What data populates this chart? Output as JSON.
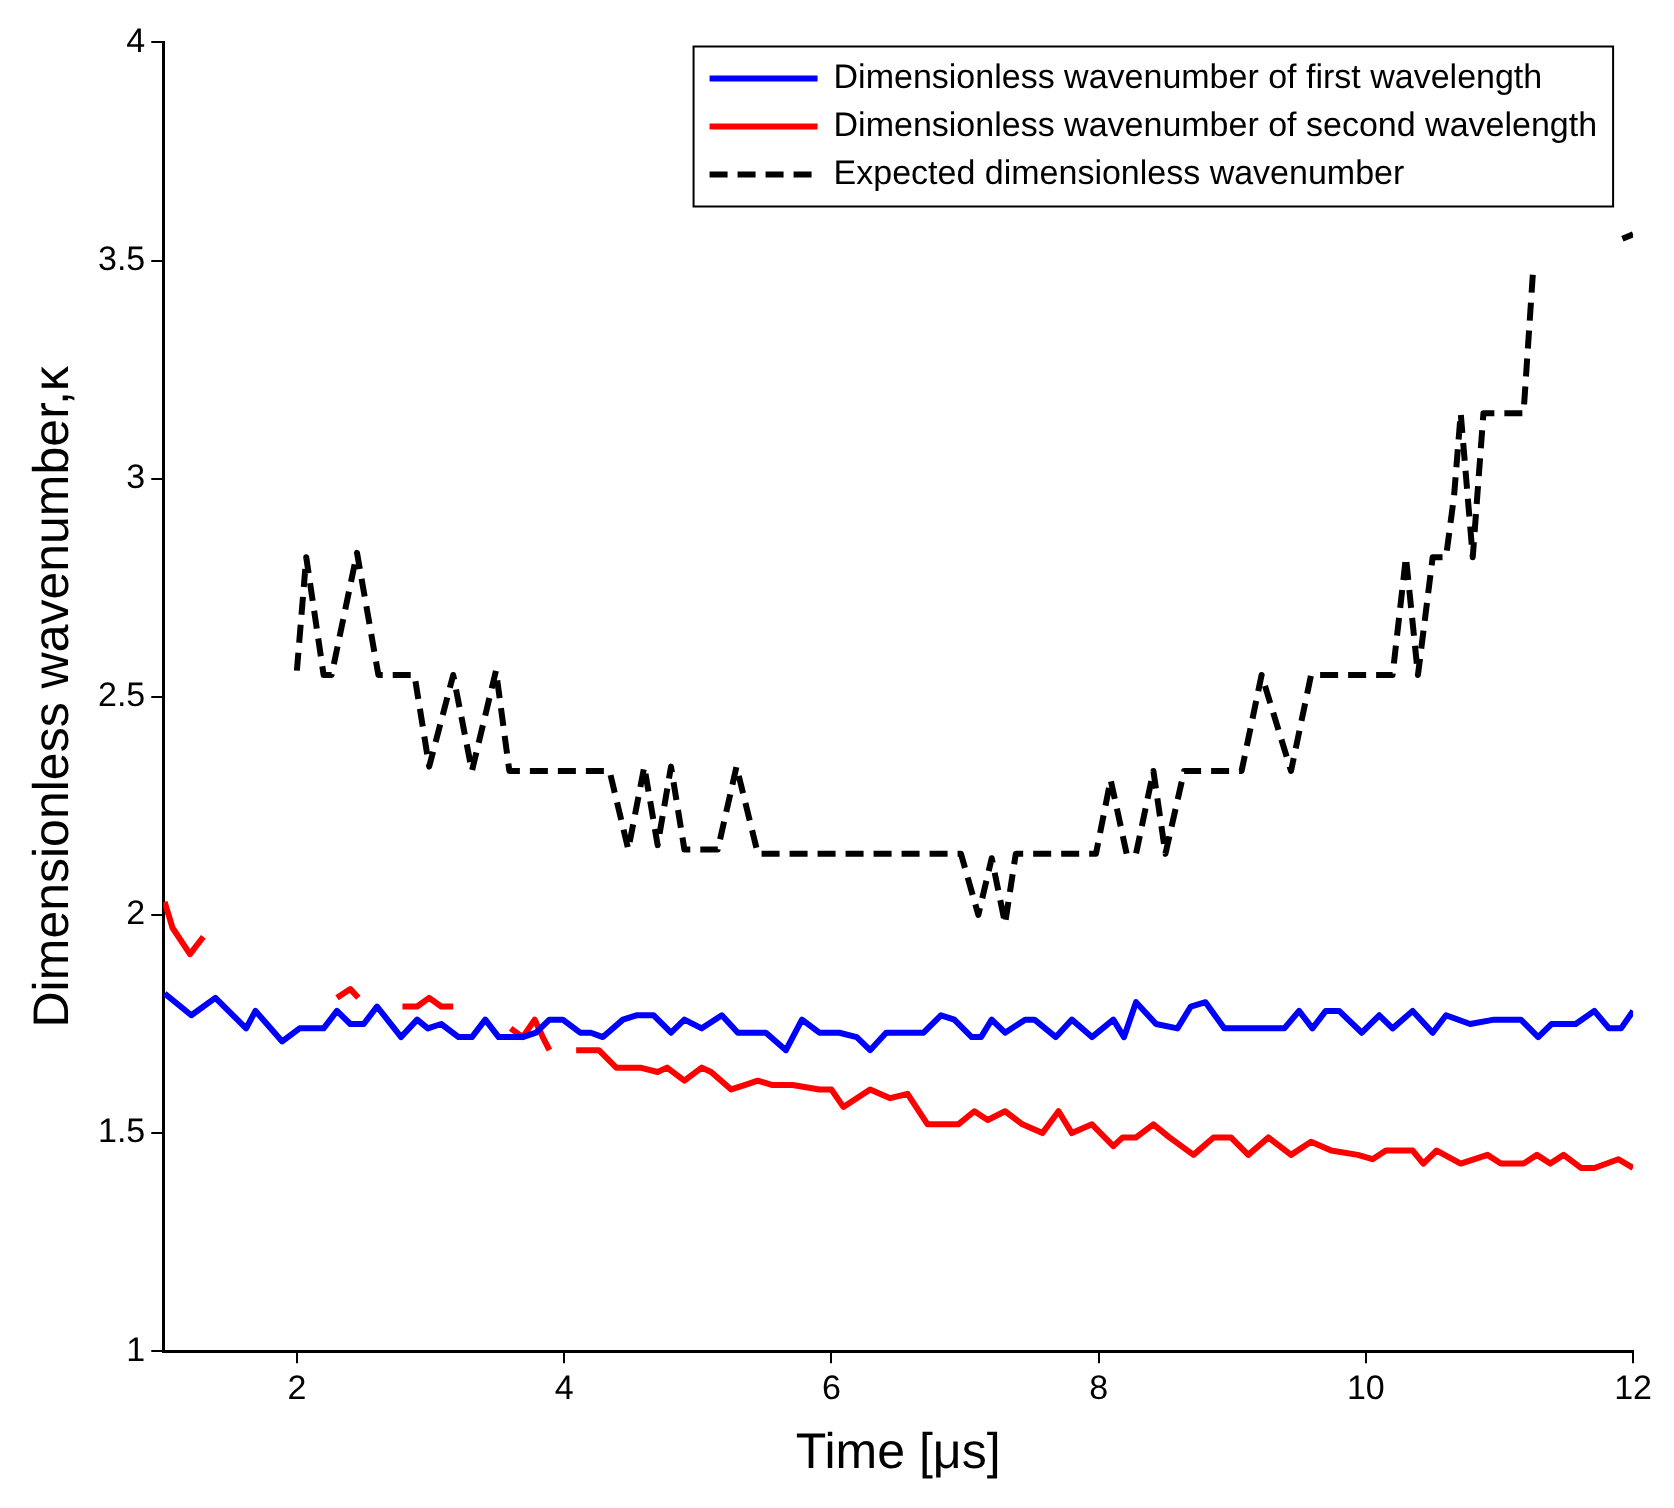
{
  "chart_data": {
    "type": "line",
    "xlabel": "Time [μs]",
    "ylabel": "Dimensionless wavenumber,κ",
    "xlim": [
      1,
      12
    ],
    "xticks": [
      2,
      4,
      6,
      8,
      10,
      12
    ],
    "ylim": [
      1,
      4
    ],
    "yticks": [
      1,
      1.5,
      2,
      2.5,
      3,
      3.5,
      4
    ],
    "grid": false,
    "legend": "top right",
    "marker": "none",
    "series": [
      {
        "name": "Dimensionless wavenumber of first wavelength",
        "color": "#0000ff",
        "line_style": "solid",
        "x": [
          1.01,
          1.21,
          1.39,
          1.62,
          1.69,
          1.89,
          2.02,
          2.2,
          2.3,
          2.4,
          2.5,
          2.6,
          2.78,
          2.9,
          2.98,
          3.08,
          3.21,
          3.31,
          3.41,
          3.51,
          3.69,
          3.79,
          3.89,
          3.99,
          4.12,
          4.2,
          4.29,
          4.44,
          4.54,
          4.67,
          4.8,
          4.9,
          5.03,
          5.18,
          5.3,
          5.51,
          5.66,
          5.78,
          5.91,
          6.06,
          6.19,
          6.29,
          6.41,
          6.69,
          6.82,
          6.92,
          7.05,
          7.12,
          7.2,
          7.3,
          7.45,
          7.52,
          7.68,
          7.8,
          7.95,
          8.11,
          8.19,
          8.28,
          8.43,
          8.59,
          8.69,
          8.8,
          8.94,
          9.09,
          9.19,
          9.39,
          9.5,
          9.6,
          9.7,
          9.8,
          9.97,
          10.1,
          10.2,
          10.35,
          10.5,
          10.6,
          10.78,
          10.96,
          11.16,
          11.29,
          11.39,
          11.57,
          11.71,
          11.82,
          11.91,
          12
        ],
        "values": [
          1.82,
          1.77,
          1.81,
          1.74,
          1.78,
          1.71,
          1.74,
          1.74,
          1.78,
          1.75,
          1.75,
          1.79,
          1.72,
          1.76,
          1.74,
          1.75,
          1.72,
          1.72,
          1.76,
          1.72,
          1.72,
          1.73,
          1.76,
          1.76,
          1.73,
          1.73,
          1.72,
          1.76,
          1.77,
          1.77,
          1.73,
          1.76,
          1.74,
          1.77,
          1.73,
          1.73,
          1.69,
          1.76,
          1.73,
          1.73,
          1.72,
          1.69,
          1.73,
          1.73,
          1.77,
          1.76,
          1.72,
          1.72,
          1.76,
          1.73,
          1.76,
          1.76,
          1.72,
          1.76,
          1.72,
          1.76,
          1.72,
          1.8,
          1.75,
          1.74,
          1.79,
          1.8,
          1.74,
          1.74,
          1.74,
          1.74,
          1.78,
          1.74,
          1.78,
          1.78,
          1.73,
          1.77,
          1.74,
          1.78,
          1.73,
          1.77,
          1.75,
          1.76,
          1.76,
          1.72,
          1.75,
          1.75,
          1.78,
          1.74,
          1.74,
          1.78
        ]
      },
      {
        "name": "Dimensionless wavenumber of second wavelength",
        "color": "#ff0000",
        "line_style": "solid",
        "x": [
          1.01,
          1.07,
          1.2,
          1.3,
          1.8,
          2.3,
          2.4,
          2.46,
          2.6,
          2.79,
          2.9,
          2.99,
          3.08,
          3.17,
          3.4,
          3.6,
          3.69,
          3.78,
          3.84,
          3.89,
          4.0,
          4.09,
          4.26,
          4.39,
          4.57,
          4.7,
          4.77,
          4.9,
          5.03,
          5.1,
          5.25,
          5.35,
          5.45,
          5.56,
          5.71,
          5.91,
          6.0,
          6.09,
          6.19,
          6.29,
          6.44,
          6.57,
          6.72,
          6.95,
          7.07,
          7.17,
          7.3,
          7.43,
          7.58,
          7.7,
          7.8,
          7.95,
          8.11,
          8.18,
          8.28,
          8.41,
          8.53,
          8.71,
          8.86,
          8.99,
          9.12,
          9.27,
          9.44,
          9.59,
          9.74,
          9.94,
          10.05,
          10.15,
          10.35,
          10.43,
          10.53,
          10.71,
          10.91,
          11.01,
          11.18,
          11.28,
          11.38,
          11.48,
          11.61,
          11.71,
          11.89,
          12
        ],
        "values": [
          2.03,
          1.97,
          1.91,
          1.95,
          null,
          1.81,
          1.83,
          1.81,
          null,
          1.79,
          1.79,
          1.81,
          1.79,
          1.79,
          null,
          1.74,
          1.72,
          1.76,
          1.72,
          1.69,
          null,
          1.69,
          1.69,
          1.65,
          1.65,
          1.64,
          1.65,
          1.62,
          1.65,
          1.64,
          1.6,
          1.61,
          1.62,
          1.61,
          1.61,
          1.6,
          1.6,
          1.56,
          1.58,
          1.6,
          1.58,
          1.59,
          1.52,
          1.52,
          1.55,
          1.53,
          1.55,
          1.52,
          1.5,
          1.55,
          1.5,
          1.52,
          1.47,
          1.49,
          1.49,
          1.52,
          1.49,
          1.45,
          1.49,
          1.49,
          1.45,
          1.49,
          1.45,
          1.48,
          1.46,
          1.45,
          1.44,
          1.46,
          1.46,
          1.43,
          1.46,
          1.43,
          1.45,
          1.43,
          1.43,
          1.45,
          1.43,
          1.45,
          1.42,
          1.42,
          1.44,
          1.42
        ]
      },
      {
        "name": "Expected dimensionless wavenumber",
        "color": "#000000",
        "line_style": "dashed",
        "x": [
          2.0,
          2.07,
          2.2,
          2.26,
          2.45,
          2.61,
          2.88,
          2.99,
          3.17,
          3.31,
          3.49,
          3.59,
          4.19,
          4.34,
          4.48,
          4.6,
          4.7,
          4.8,
          4.9,
          5.15,
          5.29,
          5.45,
          6.26,
          6.97,
          7.1,
          7.2,
          7.3,
          7.38,
          7.98,
          8.09,
          8.21,
          8.28,
          8.41,
          8.5,
          8.64,
          9.07,
          9.22,
          9.44,
          9.59,
          10.2,
          10.3,
          10.39,
          10.5,
          10.6,
          10.66,
          10.71,
          10.8,
          10.88,
          11.18,
          11.25,
          11.6,
          11.92,
          12
        ],
        "values": [
          2.56,
          2.82,
          2.55,
          2.55,
          2.83,
          2.55,
          2.55,
          2.34,
          2.55,
          2.33,
          2.56,
          2.33,
          2.33,
          2.33,
          2.15,
          2.34,
          2.16,
          2.34,
          2.15,
          2.15,
          2.34,
          2.14,
          2.14,
          2.14,
          2.0,
          2.13,
          1.98,
          2.14,
          2.14,
          2.31,
          2.14,
          2.14,
          2.33,
          2.14,
          2.33,
          2.33,
          2.55,
          2.33,
          2.55,
          2.55,
          2.82,
          2.55,
          2.82,
          2.82,
          2.96,
          3.15,
          2.82,
          3.15,
          3.15,
          3.47,
          null,
          3.55,
          3.56
        ]
      }
    ]
  }
}
